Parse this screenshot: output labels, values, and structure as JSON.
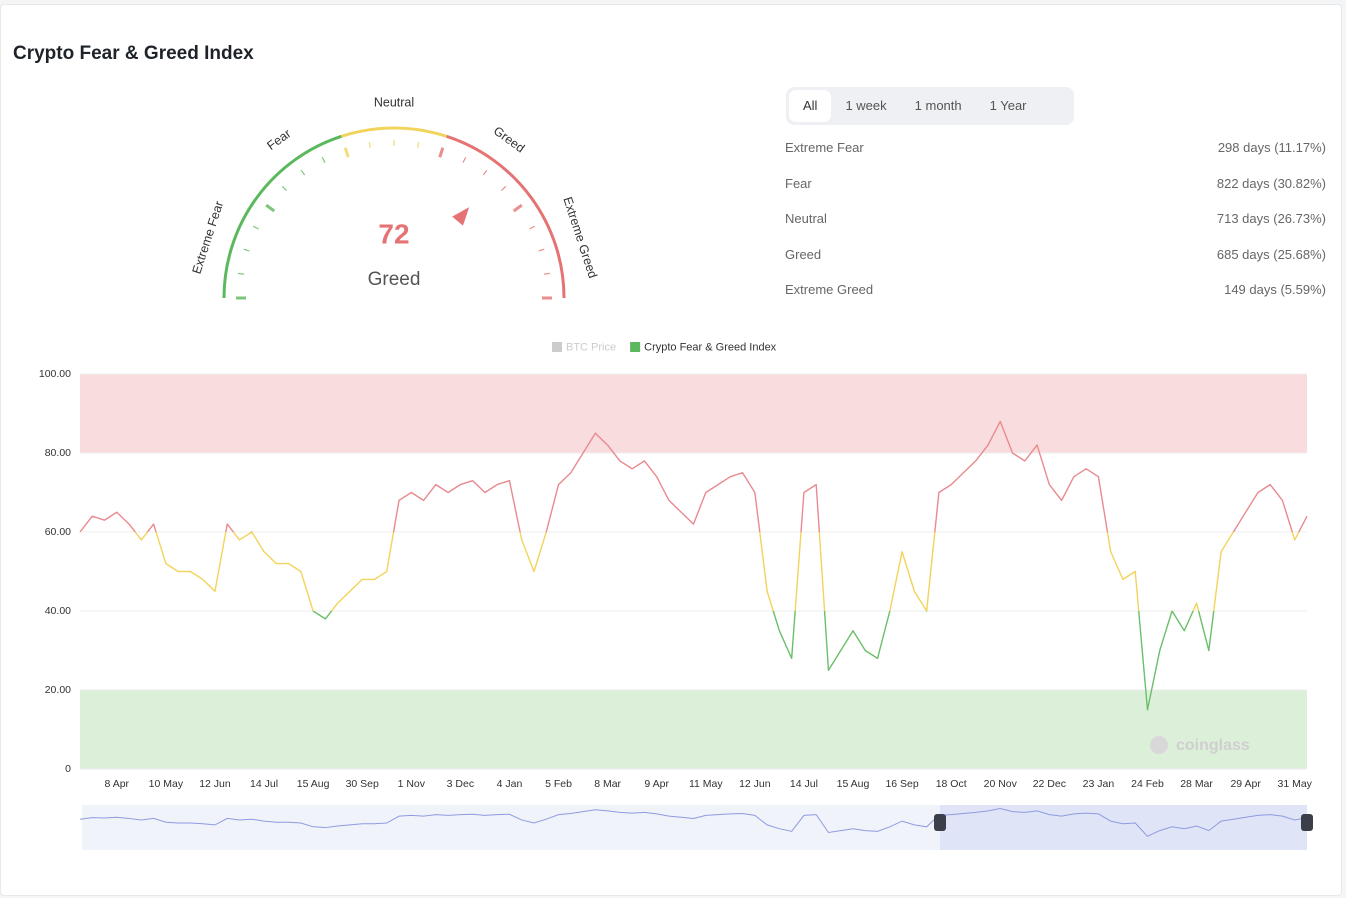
{
  "header": {
    "title": "Crypto Fear & Greed Index"
  },
  "gauge": {
    "value": 72,
    "label": "Greed",
    "range": [
      0,
      100
    ],
    "value_color": "#e57373",
    "labels": [
      "Extreme Fear",
      "Fear",
      "Neutral",
      "Greed",
      "Extreme Greed"
    ],
    "zones": [
      {
        "range": [
          0,
          40
        ],
        "color": "#5cb85c"
      },
      {
        "range": [
          40,
          60
        ],
        "color": "#f2d35b"
      },
      {
        "range": [
          60,
          100
        ],
        "color": "#e57373"
      }
    ]
  },
  "tabs": {
    "items": [
      "All",
      "1 week",
      "1 month",
      "1 Year"
    ],
    "selected": 0
  },
  "stats": {
    "rows": [
      [
        "Extreme Fear",
        "298 days (11.17%)"
      ],
      [
        "Fear",
        "822 days (30.82%)"
      ],
      [
        "Neutral",
        "713 days (26.73%)"
      ],
      [
        "Greed",
        "685 days (25.68%)"
      ],
      [
        "Extreme Greed",
        "149 days (5.59%)"
      ]
    ]
  },
  "chart_data": {
    "type": "line",
    "categories": [
      null,
      null,
      null,
      "8 Apr",
      null,
      null,
      null,
      "10 May",
      null,
      null,
      null,
      "12 Jun",
      null,
      null,
      null,
      "14 Jul",
      null,
      null,
      null,
      "15 Aug",
      null,
      null,
      null,
      "30 Sep",
      null,
      null,
      null,
      "1 Nov",
      null,
      null,
      null,
      "3 Dec",
      null,
      null,
      null,
      "4 Jan",
      null,
      null,
      null,
      "5 Feb",
      null,
      null,
      null,
      "8 Mar",
      null,
      null,
      null,
      "9 Apr",
      null,
      null,
      null,
      "11 May",
      null,
      null,
      null,
      "12 Jun",
      null,
      null,
      null,
      "14 Jul",
      null,
      null,
      null,
      "15 Aug",
      null,
      null,
      null,
      "16 Sep",
      null,
      null,
      null,
      "18 Oct",
      null,
      null,
      null,
      "20 Nov",
      null,
      null,
      null,
      "22 Dec",
      null,
      null,
      null,
      "23 Jan",
      null,
      null,
      null,
      "24 Feb",
      null,
      null,
      null,
      "28 Mar",
      null,
      null,
      null,
      "29 Apr",
      null,
      null,
      null,
      "31 May",
      null
    ],
    "series": [
      {
        "name": "BTC Price",
        "color": "#cccccc",
        "visible": false
      },
      {
        "name": "Crypto Fear & Greed Index",
        "color": "#5cb85c",
        "visible": true,
        "values": [
          60,
          64,
          63,
          65,
          62,
          58,
          62,
          52,
          50,
          50,
          48,
          45,
          62,
          58,
          60,
          55,
          52,
          52,
          50,
          40,
          38,
          42,
          45,
          48,
          48,
          50,
          68,
          70,
          68,
          72,
          70,
          72,
          73,
          70,
          72,
          73,
          58,
          50,
          60,
          72,
          75,
          80,
          85,
          82,
          78,
          76,
          78,
          74,
          68,
          65,
          62,
          70,
          72,
          74,
          75,
          70,
          45,
          35,
          28,
          70,
          72,
          25,
          30,
          35,
          30,
          28,
          40,
          55,
          45,
          40,
          70,
          72,
          75,
          78,
          82,
          88,
          80,
          78,
          82,
          72,
          68,
          74,
          76,
          74,
          55,
          48,
          50,
          15,
          30,
          40,
          35,
          42,
          30,
          55,
          60,
          65,
          70,
          72,
          68,
          58,
          64
        ]
      }
    ],
    "line_colors": [
      {
        "range": [
          0,
          40
        ],
        "color": "#6abf69"
      },
      {
        "range": [
          40,
          60
        ],
        "color": "#f2d35b"
      },
      {
        "range": [
          60,
          100
        ],
        "color": "#e88a8f"
      }
    ],
    "bands": [
      {
        "range": [
          80,
          100
        ],
        "color": "#f9dcdd"
      },
      {
        "range": [
          0,
          20
        ],
        "color": "#dcefd9"
      }
    ],
    "ylim": [
      0,
      100
    ],
    "yticks": [
      0,
      {
        "value": 20,
        "label": "20.00"
      },
      {
        "value": 40,
        "label": "40.00"
      },
      {
        "value": 60,
        "label": "60.00"
      },
      {
        "value": 80,
        "label": "80.00"
      },
      {
        "value": 100,
        "label": "100.00"
      }
    ],
    "grid": true,
    "watermark": "coinglass"
  }
}
